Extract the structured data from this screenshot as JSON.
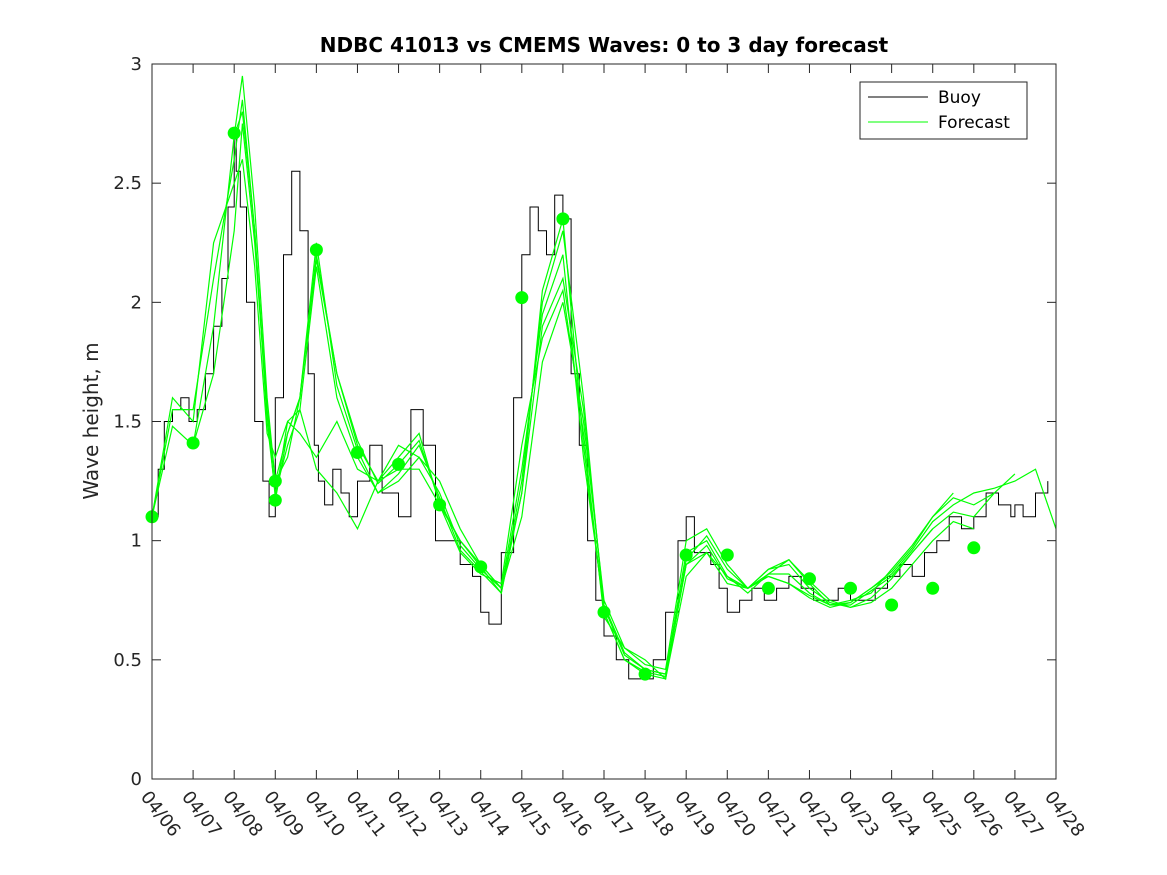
{
  "chart_data": {
    "type": "line",
    "title": "NDBC 41013 vs CMEMS Waves: 0 to 3 day forecast",
    "xlabel": "",
    "ylabel": "Wave height, m",
    "x_tick_labels": [
      "04/06",
      "04/07",
      "04/08",
      "04/09",
      "04/10",
      "04/11",
      "04/12",
      "04/13",
      "04/14",
      "04/15",
      "04/16",
      "04/17",
      "04/18",
      "04/19",
      "04/20",
      "04/21",
      "04/22",
      "04/23",
      "04/24",
      "04/25",
      "04/26",
      "04/27",
      "04/28"
    ],
    "xlim": [
      0,
      22
    ],
    "x_unit": "days since 04/06",
    "ylim": [
      0,
      3
    ],
    "y_ticks": [
      0,
      0.5,
      1,
      1.5,
      2,
      2.5,
      3
    ],
    "y_tick_labels": [
      "0",
      "0.5",
      "1",
      "1.5",
      "2",
      "2.5",
      "3"
    ],
    "grid": false,
    "legend": {
      "position": "top-right",
      "entries": [
        {
          "label": "Buoy",
          "color": "#000000"
        },
        {
          "label": "Forecast",
          "color": "#00ff00"
        }
      ]
    },
    "series": [
      {
        "name": "Buoy",
        "color": "#000000",
        "x": [
          0,
          0.15,
          0.3,
          0.5,
          0.7,
          0.9,
          1.1,
          1.3,
          1.5,
          1.7,
          1.85,
          2.0,
          2.05,
          2.15,
          2.3,
          2.5,
          2.7,
          2.85,
          3.0,
          3.2,
          3.4,
          3.6,
          3.8,
          3.95,
          4.05,
          4.2,
          4.4,
          4.6,
          4.8,
          5.0,
          5.3,
          5.6,
          6.0,
          6.3,
          6.6,
          6.9,
          7.2,
          7.5,
          7.8,
          8.0,
          8.2,
          8.5,
          8.8,
          9.0,
          9.2,
          9.4,
          9.6,
          9.8,
          10.0,
          10.2,
          10.4,
          10.6,
          10.8,
          11.0,
          11.3,
          11.6,
          11.9,
          12.2,
          12.5,
          12.8,
          13.0,
          13.2,
          13.4,
          13.6,
          13.8,
          14.0,
          14.3,
          14.6,
          14.9,
          15.2,
          15.5,
          15.8,
          16.1,
          16.4,
          16.7,
          17.0,
          17.3,
          17.6,
          17.9,
          18.2,
          18.5,
          18.8,
          19.1,
          19.4,
          19.7,
          20.0,
          20.3,
          20.6,
          20.9,
          21.0,
          21.2,
          21.5,
          21.8
        ],
        "y": [
          1.1,
          1.3,
          1.5,
          1.55,
          1.6,
          1.5,
          1.55,
          1.7,
          1.9,
          2.1,
          2.4,
          2.7,
          2.55,
          2.4,
          2.0,
          1.5,
          1.25,
          1.1,
          1.6,
          2.2,
          2.55,
          2.3,
          1.7,
          1.4,
          1.25,
          1.15,
          1.3,
          1.2,
          1.1,
          1.25,
          1.4,
          1.2,
          1.1,
          1.55,
          1.4,
          1.0,
          1.0,
          0.9,
          0.85,
          0.7,
          0.65,
          0.95,
          1.6,
          2.2,
          2.4,
          2.3,
          2.2,
          2.45,
          2.35,
          1.7,
          1.4,
          1.0,
          0.75,
          0.6,
          0.5,
          0.42,
          0.42,
          0.5,
          0.7,
          1.0,
          1.1,
          0.95,
          0.95,
          0.9,
          0.8,
          0.7,
          0.75,
          0.8,
          0.75,
          0.8,
          0.85,
          0.8,
          0.75,
          0.75,
          0.8,
          0.75,
          0.75,
          0.8,
          0.85,
          0.9,
          0.85,
          0.95,
          1.0,
          1.1,
          1.05,
          1.1,
          1.2,
          1.15,
          1.1,
          1.15,
          1.1,
          1.2,
          1.25
        ]
      },
      {
        "name": "Forecast",
        "color": "#00ff00",
        "runs": [
          {
            "x": [
              0,
              0.5,
              1,
              1.5,
              2,
              2.2,
              2.5,
              2.8,
              3,
              3.3,
              3.6,
              4,
              4.5,
              5,
              5.5,
              6,
              6.5,
              7,
              7.5,
              8,
              8.5,
              9,
              9.5,
              10,
              10.5,
              11,
              11.5,
              12,
              12.5,
              13,
              13.5,
              14,
              14.5,
              15,
              15.5,
              16,
              16.5,
              17,
              17.5,
              18,
              18.5,
              19,
              19.5,
              20,
              20.5,
              21,
              21.5,
              22
            ],
            "y": [
              1.1,
              1.48,
              1.4,
              1.9,
              2.7,
              2.95,
              2.4,
              1.6,
              1.25,
              1.35,
              1.6,
              2.2,
              1.7,
              1.4,
              1.25,
              1.3,
              1.3,
              1.15,
              1.0,
              0.89,
              0.78,
              1.2,
              2.05,
              2.35,
              1.4,
              0.7,
              0.5,
              0.45,
              0.43,
              0.9,
              0.95,
              0.82,
              0.8,
              0.85,
              0.82,
              0.76,
              0.72,
              0.74,
              0.8,
              0.86,
              0.96,
              1.08,
              1.15,
              1.2,
              1.22,
              1.25,
              1.3,
              1.05
            ]
          },
          {
            "x": [
              0,
              0.5,
              1,
              1.5,
              2,
              2.2,
              2.5,
              2.8,
              3,
              3.3,
              3.6,
              4,
              4.5,
              5,
              5.5,
              6,
              6.5,
              7,
              7.5,
              8,
              8.5,
              9,
              9.5,
              10,
              10.5,
              11,
              11.5,
              12,
              12.5,
              13,
              13.5,
              14,
              14.5,
              15,
              15.5,
              16,
              16.5,
              17,
              17.5,
              18,
              18.5,
              19,
              19.5,
              20,
              20.5,
              21
            ],
            "y": [
              1.1,
              1.55,
              1.55,
              2.1,
              2.6,
              2.85,
              2.3,
              1.5,
              1.2,
              1.4,
              1.55,
              2.15,
              1.6,
              1.35,
              1.2,
              1.25,
              1.35,
              1.2,
              0.98,
              0.88,
              0.8,
              1.3,
              1.95,
              2.2,
              1.35,
              0.72,
              0.52,
              0.46,
              0.44,
              0.95,
              1.0,
              0.85,
              0.78,
              0.86,
              0.86,
              0.78,
              0.73,
              0.75,
              0.78,
              0.88,
              0.98,
              1.1,
              1.18,
              1.15,
              1.2,
              1.28
            ]
          },
          {
            "x": [
              0,
              0.5,
              1,
              1.5,
              2,
              2.2,
              2.5,
              2.8,
              3,
              3.3,
              3.6,
              4,
              4.5,
              5,
              5.5,
              6,
              6.5,
              7,
              7.5,
              8,
              8.5,
              9,
              9.5,
              10,
              10.5,
              11,
              11.5,
              12,
              12.5,
              13,
              13.5,
              14,
              14.5,
              15,
              15.5,
              16,
              16.5,
              17,
              17.5,
              18,
              18.5,
              19,
              19.5,
              20,
              20.5
            ],
            "y": [
              1.1,
              1.6,
              1.5,
              2.25,
              2.5,
              2.6,
              2.15,
              1.45,
              1.35,
              1.5,
              1.45,
              1.35,
              1.5,
              1.3,
              1.25,
              1.35,
              1.45,
              1.15,
              0.95,
              0.86,
              0.82,
              1.4,
              1.85,
              2.05,
              1.45,
              0.68,
              0.55,
              0.48,
              0.46,
              1.0,
              1.05,
              0.9,
              0.8,
              0.88,
              0.9,
              0.8,
              0.74,
              0.72,
              0.76,
              0.84,
              0.95,
              1.05,
              1.12,
              1.1,
              1.2
            ]
          },
          {
            "x": [
              1,
              1.5,
              2,
              2.2,
              2.5,
              2.8,
              3,
              3.3,
              3.6,
              4,
              4.5,
              5,
              5.5,
              6,
              6.5,
              7,
              7.5,
              8,
              8.5,
              9,
              9.5,
              10,
              10.5,
              11,
              11.5,
              12,
              12.5,
              13,
              13.5,
              14,
              14.5,
              15,
              15.5,
              16,
              16.5,
              17,
              17.5,
              18,
              18.5,
              19,
              19.5,
              20
            ],
            "y": [
              1.4,
              1.7,
              2.3,
              2.75,
              2.25,
              1.55,
              1.18,
              1.5,
              1.55,
              1.3,
              1.2,
              1.05,
              1.25,
              1.4,
              1.35,
              1.25,
              1.05,
              0.9,
              0.8,
              1.1,
              1.75,
              2.0,
              1.5,
              0.75,
              0.55,
              0.5,
              0.42,
              0.85,
              0.95,
              0.85,
              0.8,
              0.88,
              0.92,
              0.83,
              0.75,
              0.72,
              0.74,
              0.8,
              0.9,
              1.0,
              1.08,
              1.05
            ]
          },
          {
            "x": [
              2,
              2.2,
              2.5,
              2.8,
              3,
              3.3,
              3.6,
              4,
              4.5,
              5,
              5.5,
              6,
              6.5,
              7,
              7.5,
              8,
              8.5,
              9,
              9.5,
              10,
              10.5,
              11,
              11.5,
              12,
              12.5,
              13,
              13.5,
              14,
              14.5,
              15,
              15.5,
              16,
              16.5,
              17,
              17.5,
              18,
              18.5,
              19,
              19.5
            ],
            "y": [
              2.7,
              2.8,
              2.3,
              1.55,
              1.25,
              1.45,
              1.6,
              2.25,
              1.65,
              1.38,
              1.2,
              1.28,
              1.4,
              1.18,
              0.96,
              0.87,
              0.78,
              1.25,
              2.0,
              2.3,
              1.6,
              0.7,
              0.5,
              0.44,
              0.42,
              0.92,
              1.02,
              0.88,
              0.8,
              0.86,
              0.92,
              0.82,
              0.73,
              0.74,
              0.8,
              0.87,
              0.97,
              1.1,
              1.2
            ]
          },
          {
            "x": [
              3,
              3.3,
              3.6,
              4,
              4.5,
              5,
              5.5,
              6,
              6.5,
              7,
              7.5,
              8,
              8.5,
              9,
              9.5,
              10,
              10.5,
              11,
              11.5,
              12,
              12.5,
              13,
              13.5,
              14,
              14.5,
              15,
              15.5,
              16,
              16.5,
              17,
              17.5,
              18,
              18.5,
              19
            ],
            "y": [
              1.17,
              1.45,
              1.6,
              2.18,
              1.7,
              1.42,
              1.24,
              1.32,
              1.42,
              1.16,
              1.0,
              0.9,
              0.8,
              1.2,
              1.9,
              2.1,
              1.55,
              0.73,
              0.53,
              0.46,
              0.44,
              0.9,
              0.98,
              0.84,
              0.8,
              0.85,
              0.82,
              0.77,
              0.73,
              0.73,
              0.79,
              0.85,
              0.95,
              1.05
            ]
          }
        ]
      }
    ],
    "markers": {
      "color": "#00ff00",
      "points": [
        [
          0,
          1.1
        ],
        [
          1,
          1.41
        ],
        [
          2,
          2.71
        ],
        [
          3,
          1.25
        ],
        [
          3,
          1.17
        ],
        [
          4,
          2.22
        ],
        [
          5,
          1.37
        ],
        [
          6,
          1.32
        ],
        [
          7,
          1.15
        ],
        [
          8,
          0.89
        ],
        [
          9,
          2.02
        ],
        [
          10,
          2.35
        ],
        [
          11,
          0.7
        ],
        [
          12,
          0.44
        ],
        [
          13,
          0.94
        ],
        [
          14,
          0.94
        ],
        [
          15,
          0.8
        ],
        [
          16,
          0.84
        ],
        [
          17,
          0.8
        ],
        [
          18,
          0.73
        ],
        [
          19,
          0.8
        ],
        [
          20,
          0.97
        ]
      ]
    }
  }
}
